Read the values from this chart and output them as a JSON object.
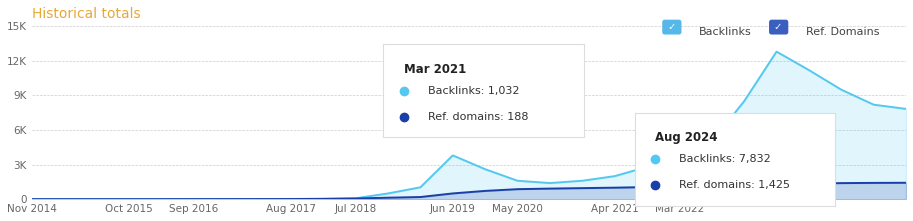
{
  "title": "Historical totals",
  "title_color": "#e8a838",
  "legend_items": [
    "Backlinks",
    "Ref. Domains"
  ],
  "legend_colors_box": [
    "#55b8e8",
    "#3b5fc0"
  ],
  "backlink_color": "#55c8f0",
  "ref_domain_color": "#1a3fa8",
  "background_color": "#ffffff",
  "grid_color": "#cccccc",
  "ylim": [
    0,
    15000
  ],
  "yticks": [
    0,
    3000,
    6000,
    9000,
    12000,
    15000
  ],
  "ytick_labels": [
    "0",
    "3K",
    "6K",
    "9K",
    "12K",
    "15K"
  ],
  "xtick_labels": [
    "Nov 2014",
    "Oct 2015",
    "Sep 2016",
    "Aug 2017",
    "Jul 2018",
    "Jun 2019",
    "May 2020",
    "Apr 2021",
    "Mar 2022"
  ],
  "tooltip1": {
    "title": "Mar 2021",
    "backlinks": "1,032",
    "ref_domains": "188"
  },
  "tooltip2": {
    "title": "Aug 2024",
    "backlinks": "7,832",
    "ref_domains": "1,425"
  },
  "backlinks_y": [
    8,
    8,
    8,
    8,
    8,
    10,
    12,
    15,
    20,
    35,
    80,
    500,
    1032,
    3800,
    2600,
    1600,
    1400,
    1600,
    2000,
    2800,
    4200,
    5000,
    8500,
    12800,
    11200,
    9500,
    8200,
    7832
  ],
  "ref_domains_y": [
    3,
    3,
    3,
    3,
    3,
    5,
    7,
    10,
    15,
    28,
    60,
    130,
    188,
    500,
    720,
    870,
    920,
    960,
    1000,
    1050,
    1100,
    1150,
    1220,
    1300,
    1360,
    1395,
    1415,
    1425
  ]
}
